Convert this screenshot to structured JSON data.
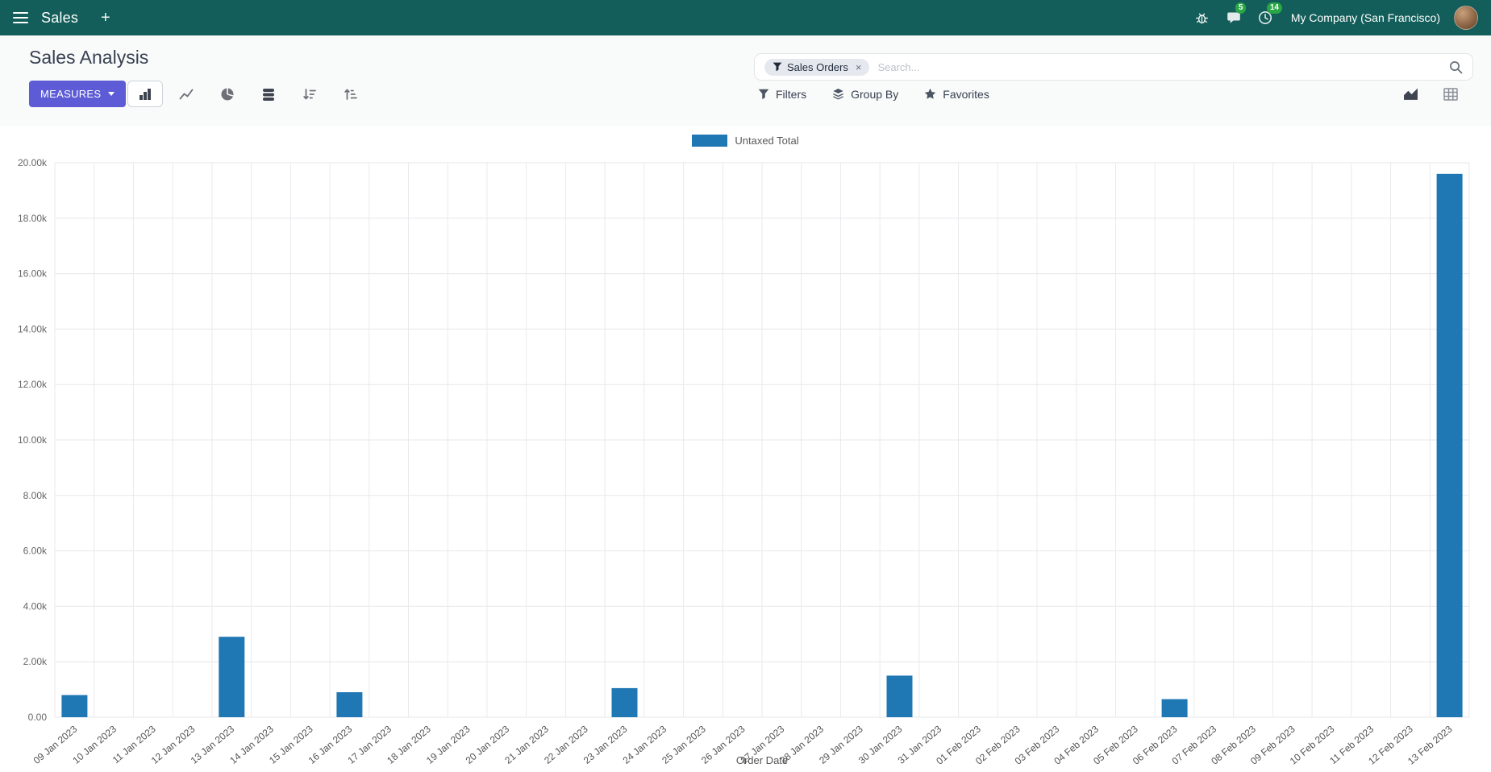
{
  "nav": {
    "app_name": "Sales",
    "new_tab": "+",
    "company": "My Company (San Francisco)",
    "badges": {
      "messages": "5",
      "activities": "14"
    }
  },
  "header": {
    "title": "Sales Analysis"
  },
  "search": {
    "facet_label": "Sales Orders",
    "facet_remove": "×",
    "placeholder": "Search..."
  },
  "toolbar": {
    "measures": "MEASURES",
    "filters": "Filters",
    "group_by": "Group By",
    "favorites": "Favorites"
  },
  "chart_data": {
    "type": "bar",
    "series_name": "Untaxed Total",
    "xlabel": "Order Date",
    "ylabel": "",
    "ylim": [
      0,
      20000
    ],
    "ytick_step": 2000,
    "ytick_labels": [
      "0.00",
      "2.00k",
      "4.00k",
      "6.00k",
      "8.00k",
      "10.00k",
      "12.00k",
      "14.00k",
      "16.00k",
      "18.00k",
      "20.00k"
    ],
    "categories": [
      "09 Jan 2023",
      "10 Jan 2023",
      "11 Jan 2023",
      "12 Jan 2023",
      "13 Jan 2023",
      "14 Jan 2023",
      "15 Jan 2023",
      "16 Jan 2023",
      "17 Jan 2023",
      "18 Jan 2023",
      "19 Jan 2023",
      "20 Jan 2023",
      "21 Jan 2023",
      "22 Jan 2023",
      "23 Jan 2023",
      "24 Jan 2023",
      "25 Jan 2023",
      "26 Jan 2023",
      "27 Jan 2023",
      "28 Jan 2023",
      "29 Jan 2023",
      "30 Jan 2023",
      "31 Jan 2023",
      "01 Feb 2023",
      "02 Feb 2023",
      "03 Feb 2023",
      "04 Feb 2023",
      "05 Feb 2023",
      "06 Feb 2023",
      "07 Feb 2023",
      "08 Feb 2023",
      "09 Feb 2023",
      "10 Feb 2023",
      "11 Feb 2023",
      "12 Feb 2023",
      "13 Feb 2023"
    ],
    "values": [
      800,
      0,
      0,
      0,
      2900,
      0,
      0,
      900,
      0,
      0,
      0,
      0,
      0,
      0,
      1050,
      0,
      0,
      0,
      0,
      0,
      0,
      1500,
      0,
      0,
      0,
      0,
      0,
      0,
      650,
      0,
      0,
      0,
      0,
      0,
      0,
      19600
    ],
    "bar_color": "#1f77b4",
    "grid": true,
    "legend_position": "top"
  }
}
